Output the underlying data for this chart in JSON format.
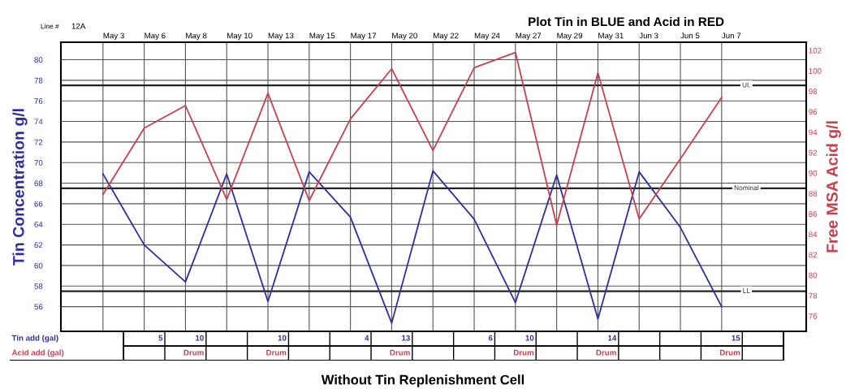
{
  "chart_data": [
    {
      "type": "line",
      "title": "Plot Tin in BLUE and Acid in RED",
      "ylabel": "Tin Concentration g/l",
      "y2label": "Free MSA Acid g/l",
      "categories": [
        "May 3",
        "May 6",
        "May 8",
        "May 10",
        "May 13",
        "May 15",
        "May 17",
        "May 20",
        "May 22",
        "May 24",
        "May 27",
        "May 29",
        "May 31",
        "Jun 3",
        "Jun 5",
        "Jun 7"
      ],
      "series": [
        {
          "color": "#2e2e9c",
          "values": [
            68.9,
            62.0,
            58.4,
            68.9,
            56.5,
            69.1,
            64.7,
            54.4,
            69.2,
            64.5,
            56.4,
            68.8,
            54.8,
            69.1,
            63.7,
            56.0
          ]
        },
        {
          "color": "#c8404e",
          "axis": "y2",
          "values": [
            87.9,
            94.4,
            96.6,
            87.4,
            97.8,
            87.3,
            95.3,
            100.2,
            92.2,
            100.3,
            101.8,
            84.9,
            99.8,
            85.5,
            91.4,
            97.4
          ]
        }
      ],
      "ylim": [
        53.6,
        81.7
      ],
      "yticks": [
        56,
        58,
        60,
        62,
        64,
        66,
        68,
        70,
        72,
        74,
        76,
        78,
        80
      ],
      "y2lim": [
        74.5,
        102.8
      ],
      "y2ticks": [
        76,
        78,
        80,
        82,
        84,
        86,
        88,
        90,
        92,
        94,
        96,
        98,
        100,
        102
      ],
      "ref_lines": [
        {
          "axis": "y",
          "value": 77.5,
          "label": "UL",
          "color": "#222222"
        },
        {
          "axis": "y",
          "value": 67.5,
          "label": "Nominal",
          "color": "#222222"
        },
        {
          "axis": "y",
          "value": 57.5,
          "label": "LL",
          "color": "#222222"
        }
      ],
      "grid": true,
      "marker": "none",
      "line_style": "solid",
      "annotations": [
        "Line #",
        "12A",
        "Without Tin Replenishment Cell"
      ]
    },
    {
      "type": "other",
      "series": [
        {
          "name": "Tin add (gal)",
          "color": "#2e2e9c",
          "values": [
            null,
            null,
            null,
            null,
            null,
            null,
            null,
            null,
            null,
            null,
            null,
            null,
            null,
            null,
            null,
            null
          ],
          "value_labels": [
            null,
            "5",
            "10",
            null,
            "10",
            null,
            "4",
            "13",
            null,
            "6",
            "10",
            null,
            "14",
            null,
            null,
            "15"
          ]
        },
        {
          "name": "Acid add (gal)",
          "color": "#c8404e",
          "values": [
            null,
            null,
            null,
            null,
            null,
            null,
            null,
            null,
            null,
            null,
            null,
            null,
            null,
            null,
            null,
            null
          ],
          "value_labels": [
            null,
            null,
            "Drum",
            null,
            "Drum",
            null,
            null,
            "Drum",
            null,
            null,
            "Drum",
            null,
            "Drum",
            null,
            null,
            "Drum"
          ]
        }
      ]
    }
  ]
}
